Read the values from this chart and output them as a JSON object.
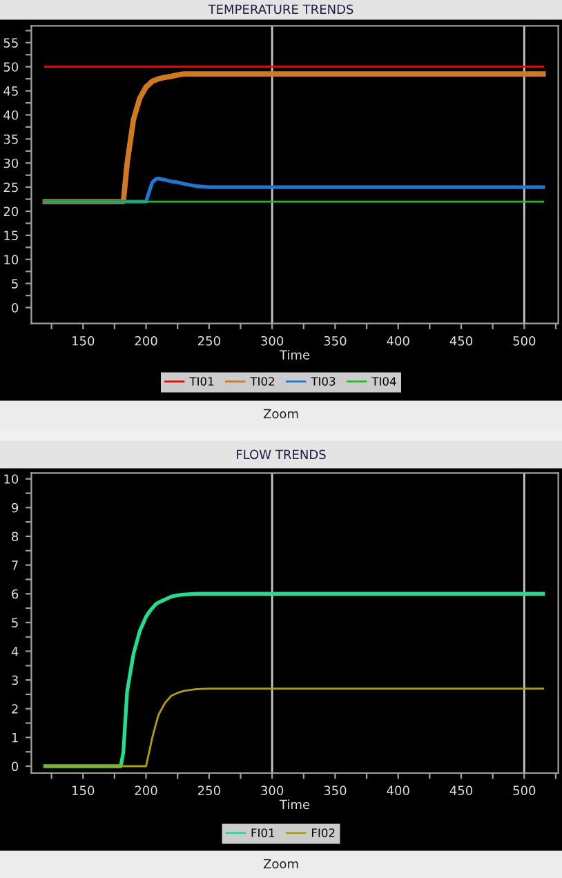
{
  "chart_data": [
    {
      "type": "line",
      "title": "TEMPERATURE TRENDS",
      "xlabel": "Time",
      "annotations": [
        "Zoom"
      ],
      "legend": "bottom",
      "grid": false,
      "marker": "none",
      "line_style": "solid",
      "x": [
        120,
        130,
        140,
        150,
        160,
        170,
        180,
        182,
        185,
        190,
        195,
        200,
        203,
        205,
        208,
        210,
        215,
        220,
        225,
        230,
        240,
        250,
        275,
        300,
        325,
        350,
        375,
        400,
        425,
        450,
        475,
        500,
        515
      ],
      "series": [
        {
          "name": "TI01",
          "color": "#ff0000",
          "values": [
            50,
            50,
            50,
            50,
            50,
            50,
            50,
            50,
            50,
            50,
            50,
            50,
            50,
            50,
            50,
            50,
            50,
            50,
            50,
            50,
            50,
            50,
            50,
            50,
            50,
            50,
            50,
            50,
            50,
            50,
            50,
            50,
            50
          ]
        },
        {
          "name": "TI02",
          "color": "#d07a20",
          "values": [
            22,
            22,
            22,
            22,
            22,
            22,
            22,
            22,
            30,
            39,
            43.5,
            45.8,
            46.5,
            47,
            47.3,
            47.5,
            47.8,
            48,
            48.3,
            48.5,
            48.5,
            48.5,
            48.5,
            48.5,
            48.5,
            48.5,
            48.5,
            48.5,
            48.5,
            48.5,
            48.5,
            48.5,
            48.5
          ]
        },
        {
          "name": "TI03",
          "color": "#1e78d2",
          "values": [
            22,
            22,
            22,
            22,
            22,
            22,
            22,
            22,
            22,
            22,
            22,
            22,
            24.5,
            26,
            26.7,
            26.8,
            26.5,
            26.2,
            26,
            25.7,
            25.2,
            25,
            25,
            25,
            25,
            25,
            25,
            25,
            25,
            25,
            25,
            25,
            25
          ]
        },
        {
          "name": "TI04",
          "color": "#20c020",
          "values": [
            22,
            22,
            22,
            22,
            22,
            22,
            22,
            22,
            22,
            22,
            22,
            22,
            22,
            22,
            22,
            22,
            22,
            22,
            22,
            22,
            22,
            22,
            22,
            22,
            22,
            22,
            22,
            22,
            22,
            22,
            22,
            22,
            22
          ]
        }
      ],
      "xlim": [
        109,
        527
      ],
      "ylim": [
        -3.3,
        58.5
      ],
      "xticks": [
        {
          "value": 125,
          "label": null
        },
        150,
        {
          "value": 175,
          "label": null
        },
        200,
        {
          "value": 225,
          "label": null
        },
        250,
        {
          "value": 275,
          "label": null
        },
        300,
        {
          "value": 325,
          "label": null
        },
        350,
        {
          "value": 375,
          "label": null
        },
        400,
        {
          "value": 425,
          "label": null
        },
        450,
        {
          "value": 475,
          "label": null
        },
        500,
        {
          "value": 525,
          "label": null
        }
      ],
      "yticks": [
        0,
        {
          "value": 2.5,
          "label": null
        },
        5,
        {
          "value": 7.5,
          "label": null
        },
        10,
        {
          "value": 12.5,
          "label": null
        },
        15,
        {
          "value": 17.5,
          "label": null
        },
        20,
        {
          "value": 22.5,
          "label": null
        },
        25,
        {
          "value": 27.5,
          "label": null
        },
        30,
        {
          "value": 32.5,
          "label": null
        },
        35,
        {
          "value": 37.5,
          "label": null
        },
        40,
        {
          "value": 42.5,
          "label": null
        },
        45,
        {
          "value": 47.5,
          "label": null
        },
        50,
        {
          "value": 52.5,
          "label": null
        },
        55,
        {
          "value": 57.5,
          "label": null
        }
      ],
      "ref_lines": [
        {
          "axis": "x",
          "value": 300,
          "color": "#c8c8c8"
        },
        {
          "axis": "x",
          "value": 500,
          "color": "#c8c8c8"
        }
      ]
    },
    {
      "type": "line",
      "title": "FLOW TRENDS",
      "xlabel": "Time",
      "annotations": [
        "Zoom"
      ],
      "legend": "bottom",
      "grid": false,
      "marker": "none",
      "line_style": "solid",
      "x": [
        120,
        130,
        140,
        150,
        160,
        170,
        180,
        182,
        185,
        190,
        195,
        200,
        203,
        205,
        208,
        210,
        215,
        220,
        225,
        230,
        240,
        250,
        275,
        300,
        325,
        350,
        375,
        400,
        425,
        450,
        475,
        500,
        515
      ],
      "series": [
        {
          "name": "FI01",
          "color": "#20e090",
          "values": [
            0,
            0,
            0,
            0,
            0,
            0,
            0,
            0.5,
            2.6,
            3.9,
            4.7,
            5.2,
            5.4,
            5.5,
            5.65,
            5.7,
            5.8,
            5.9,
            5.95,
            5.97,
            6,
            6,
            6,
            6,
            6,
            6,
            6,
            6,
            6,
            6,
            6,
            6,
            6
          ]
        },
        {
          "name": "FI02",
          "color": "#b0a000",
          "values": [
            0,
            0,
            0,
            0,
            0,
            0,
            0,
            0,
            0,
            0,
            0,
            0,
            0.6,
            1.0,
            1.5,
            1.8,
            2.2,
            2.45,
            2.55,
            2.62,
            2.68,
            2.7,
            2.7,
            2.7,
            2.7,
            2.7,
            2.7,
            2.7,
            2.7,
            2.7,
            2.7,
            2.7,
            2.7
          ]
        }
      ],
      "xlim": [
        109,
        527
      ],
      "ylim": [
        -0.24,
        10.2
      ],
      "xticks": [
        {
          "value": 125,
          "label": null
        },
        150,
        {
          "value": 175,
          "label": null
        },
        200,
        {
          "value": 225,
          "label": null
        },
        250,
        {
          "value": 275,
          "label": null
        },
        300,
        {
          "value": 325,
          "label": null
        },
        350,
        {
          "value": 375,
          "label": null
        },
        400,
        {
          "value": 425,
          "label": null
        },
        450,
        {
          "value": 475,
          "label": null
        },
        500,
        {
          "value": 525,
          "label": null
        }
      ],
      "yticks": [
        0,
        {
          "value": 0.5,
          "label": null
        },
        1,
        {
          "value": 1.5,
          "label": null
        },
        2,
        {
          "value": 2.5,
          "label": null
        },
        3,
        {
          "value": 3.5,
          "label": null
        },
        4,
        {
          "value": 4.5,
          "label": null
        },
        5,
        {
          "value": 5.5,
          "label": null
        },
        6,
        {
          "value": 6.5,
          "label": null
        },
        7,
        {
          "value": 7.5,
          "label": null
        },
        8,
        {
          "value": 8.5,
          "label": null
        },
        9,
        {
          "value": 9.5,
          "label": null
        },
        10
      ],
      "ref_lines": [
        {
          "axis": "x",
          "value": 300,
          "color": "#c8c8c8"
        },
        {
          "axis": "x",
          "value": 500,
          "color": "#c8c8c8"
        }
      ]
    }
  ]
}
